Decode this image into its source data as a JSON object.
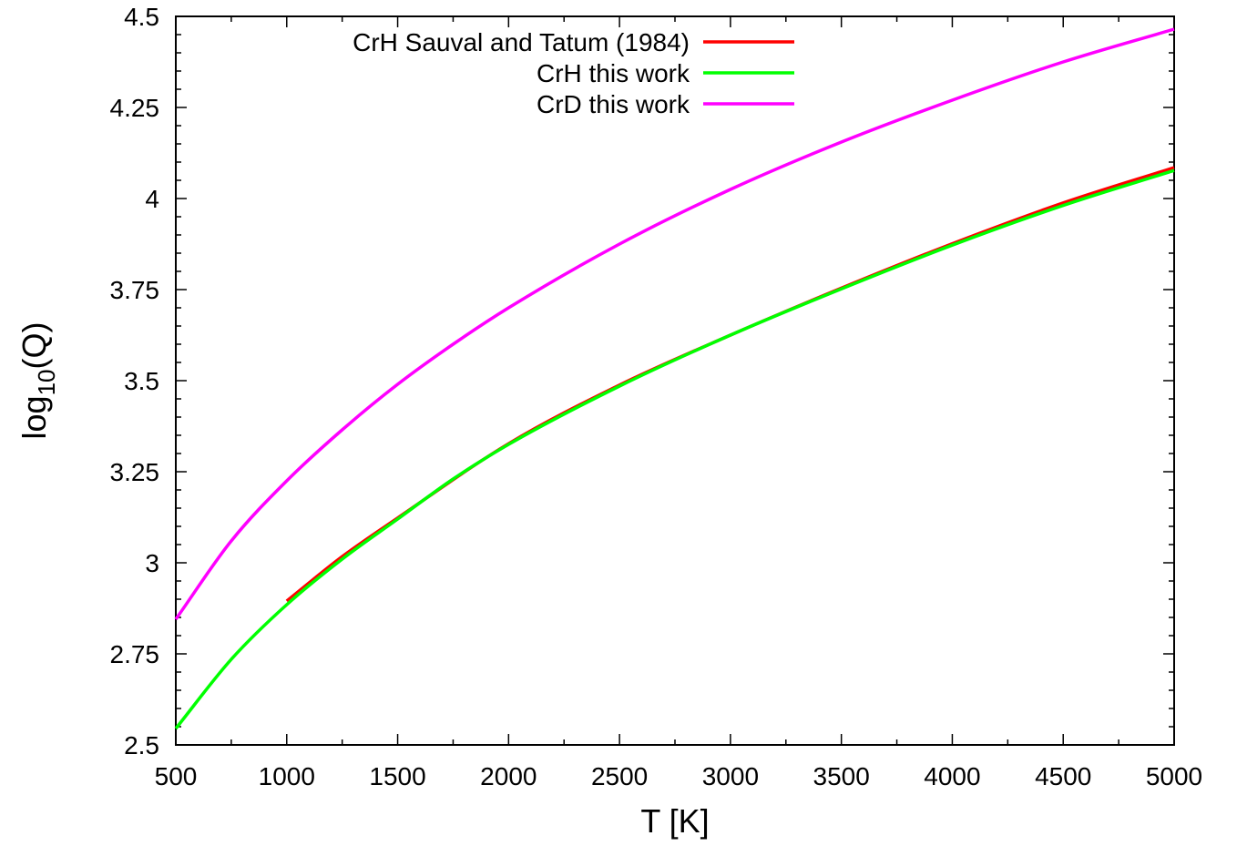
{
  "chart_data": {
    "type": "line",
    "title": "",
    "xlabel": "T [K]",
    "ylabel_main": "log",
    "ylabel_sub": "10",
    "ylabel_tail": "(Q)",
    "xlim": [
      500,
      5000
    ],
    "ylim": [
      2.5,
      4.5
    ],
    "x_ticks": [
      500,
      1000,
      1500,
      2000,
      2500,
      3000,
      3500,
      4000,
      4500,
      5000
    ],
    "x_tick_labels": [
      "500",
      "1000",
      "1500",
      "2000",
      "2500",
      "3000",
      "3500",
      "4000",
      "4500",
      "5000"
    ],
    "y_ticks": [
      2.5,
      2.75,
      3,
      3.25,
      3.5,
      3.75,
      4,
      4.25,
      4.5
    ],
    "y_tick_labels": [
      "2.5",
      "2.75",
      "3",
      "3.25",
      "3.5",
      "3.75",
      "4",
      "4.25",
      "4.5"
    ],
    "grid": false,
    "legend_position": "top-left",
    "series": [
      {
        "name": "CrH Sauval and Tatum (1984)",
        "color": "#ff0000",
        "x": [
          1000,
          1250,
          1500,
          2000,
          2500,
          3000,
          3500,
          4000,
          4500,
          5000
        ],
        "y": [
          2.895,
          3.017,
          3.123,
          3.327,
          3.488,
          3.625,
          3.754,
          3.876,
          3.988,
          4.085
        ]
      },
      {
        "name": "CrH this work",
        "color": "#00ff00",
        "x": [
          500,
          750,
          1000,
          1250,
          1500,
          1750,
          2000,
          2500,
          3000,
          3500,
          4000,
          4500,
          5000
        ],
        "y": [
          2.545,
          2.735,
          2.885,
          3.01,
          3.12,
          3.23,
          3.325,
          3.485,
          3.625,
          3.752,
          3.872,
          3.981,
          4.077
        ]
      },
      {
        "name": "CrD this work",
        "color": "#ff00ff",
        "x": [
          500,
          750,
          1000,
          1250,
          1500,
          1750,
          2000,
          2500,
          3000,
          3500,
          4000,
          4500,
          5000
        ],
        "y": [
          2.845,
          3.06,
          3.225,
          3.365,
          3.49,
          3.6,
          3.7,
          3.875,
          4.025,
          4.155,
          4.27,
          4.375,
          4.465
        ]
      }
    ]
  }
}
